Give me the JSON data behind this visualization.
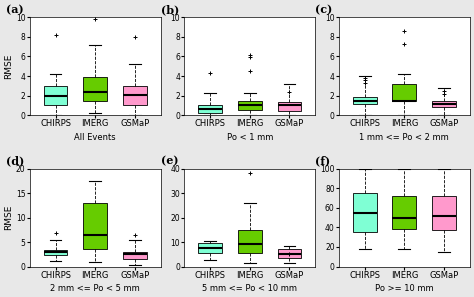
{
  "panels": [
    {
      "label": "(a)",
      "subtitle": "All Events",
      "ylim": [
        0,
        10
      ],
      "yticks": [
        0,
        2,
        4,
        6,
        8,
        10
      ],
      "ylabel": "RMSE",
      "boxes": [
        {
          "name": "CHIRPS",
          "color": "#7FFFD4",
          "q1": 1.0,
          "median": 2.0,
          "q3": 3.0,
          "whislo": 0.0,
          "whishi": 4.2,
          "fliers": [
            8.2
          ]
        },
        {
          "name": "IMERG",
          "color": "#66CC00",
          "q1": 1.5,
          "median": 2.4,
          "q3": 3.9,
          "whislo": 0.2,
          "whishi": 7.2,
          "fliers": [
            9.8
          ]
        },
        {
          "name": "GSMaP",
          "color": "#FF99CC",
          "q1": 1.0,
          "median": 2.1,
          "q3": 3.0,
          "whislo": 0.0,
          "whishi": 5.2,
          "fliers": [
            8.0
          ]
        }
      ]
    },
    {
      "label": "(b)",
      "subtitle": "Po < 1 mm",
      "ylim": [
        0,
        10
      ],
      "yticks": [
        0,
        2,
        4,
        6,
        8,
        10
      ],
      "ylabel": "RMSE",
      "boxes": [
        {
          "name": "CHIRPS",
          "color": "#7FFFD4",
          "q1": 0.2,
          "median": 0.6,
          "q3": 1.0,
          "whislo": 0.0,
          "whishi": 2.3,
          "fliers": [
            4.3
          ]
        },
        {
          "name": "IMERG",
          "color": "#66CC00",
          "q1": 0.5,
          "median": 1.0,
          "q3": 1.5,
          "whislo": 0.0,
          "whishi": 2.3,
          "fliers": [
            4.5,
            5.9,
            6.1
          ]
        },
        {
          "name": "GSMaP",
          "color": "#FF99CC",
          "q1": 0.4,
          "median": 1.0,
          "q3": 1.4,
          "whislo": 0.0,
          "whishi": 3.2,
          "fliers": [
            2.4
          ]
        }
      ]
    },
    {
      "label": "(c)",
      "subtitle": "1 mm <= Po < 2 mm",
      "ylim": [
        0,
        10
      ],
      "yticks": [
        0,
        2,
        4,
        6,
        8,
        10
      ],
      "ylabel": "RMSE",
      "boxes": [
        {
          "name": "CHIRPS",
          "color": "#7FFFD4",
          "q1": 1.1,
          "median": 1.5,
          "q3": 1.9,
          "whislo": 0.0,
          "whishi": 4.0,
          "fliers": [
            3.3,
            3.6,
            3.8
          ]
        },
        {
          "name": "IMERG",
          "color": "#66CC00",
          "q1": 1.5,
          "median": 1.5,
          "q3": 3.2,
          "whislo": 0.0,
          "whishi": 4.2,
          "fliers": [
            8.6,
            7.3
          ]
        },
        {
          "name": "GSMaP",
          "color": "#FF99CC",
          "q1": 0.8,
          "median": 1.1,
          "q3": 1.5,
          "whislo": 0.0,
          "whishi": 2.8,
          "fliers": [
            2.2,
            2.5
          ]
        }
      ]
    },
    {
      "label": "(d)",
      "subtitle": "2 mm <= Po < 5 mm",
      "ylim": [
        0,
        20
      ],
      "yticks": [
        0,
        5,
        10,
        15,
        20
      ],
      "ylabel": "RMSE",
      "boxes": [
        {
          "name": "CHIRPS",
          "color": "#7FFFD4",
          "q1": 2.4,
          "median": 2.9,
          "q3": 3.3,
          "whislo": 1.2,
          "whishi": 5.5,
          "fliers": [
            6.8
          ]
        },
        {
          "name": "IMERG",
          "color": "#66CC00",
          "q1": 3.5,
          "median": 6.5,
          "q3": 13.0,
          "whislo": 1.0,
          "whishi": 17.5,
          "fliers": []
        },
        {
          "name": "GSMaP",
          "color": "#FF99CC",
          "q1": 1.5,
          "median": 2.5,
          "q3": 3.0,
          "whislo": 0.3,
          "whishi": 5.5,
          "fliers": [
            6.5
          ]
        }
      ]
    },
    {
      "label": "(e)",
      "subtitle": "5 mm <= Po < 10 mm",
      "ylim": [
        0,
        40
      ],
      "yticks": [
        0,
        10,
        20,
        30,
        40
      ],
      "ylabel": "RMSE",
      "boxes": [
        {
          "name": "CHIRPS",
          "color": "#7FFFD4",
          "q1": 5.5,
          "median": 7.5,
          "q3": 9.5,
          "whislo": 2.5,
          "whishi": 10.5,
          "fliers": []
        },
        {
          "name": "IMERG",
          "color": "#66CC00",
          "q1": 5.5,
          "median": 9.0,
          "q3": 15.0,
          "whislo": 1.5,
          "whishi": 26.0,
          "fliers": [
            38.0
          ]
        },
        {
          "name": "GSMaP",
          "color": "#FF99CC",
          "q1": 3.5,
          "median": 5.0,
          "q3": 7.0,
          "whislo": 1.5,
          "whishi": 8.5,
          "fliers": [
            5.0
          ]
        }
      ]
    },
    {
      "label": "(f)",
      "subtitle": "Po >= 10 mm",
      "ylim": [
        0,
        100
      ],
      "yticks": [
        0,
        20,
        40,
        60,
        80,
        100
      ],
      "ylabel": "RMSE",
      "boxes": [
        {
          "name": "CHIRPS",
          "color": "#7FFFD4",
          "q1": 35.0,
          "median": 55.0,
          "q3": 75.0,
          "whislo": 18.0,
          "whishi": 100.0,
          "fliers": []
        },
        {
          "name": "IMERG",
          "color": "#66CC00",
          "q1": 38.0,
          "median": 50.0,
          "q3": 72.0,
          "whislo": 18.0,
          "whishi": 100.0,
          "fliers": []
        },
        {
          "name": "GSMaP",
          "color": "#FF99CC",
          "q1": 37.0,
          "median": 52.0,
          "q3": 72.0,
          "whislo": 15.0,
          "whishi": 100.0,
          "fliers": []
        }
      ]
    }
  ],
  "bg_color": "#ffffff",
  "fig_bg_color": "#e8e8e8",
  "box_width": 0.6,
  "median_color": "black",
  "whisker_color": "black",
  "flier_marker": "+",
  "flier_color": "black",
  "flier_size": 3,
  "xlabel_fontsize": 6.0,
  "ylabel_fontsize": 6.5,
  "tick_fontsize": 5.5,
  "label_fontsize": 8,
  "subtitle_fontsize": 6.0
}
